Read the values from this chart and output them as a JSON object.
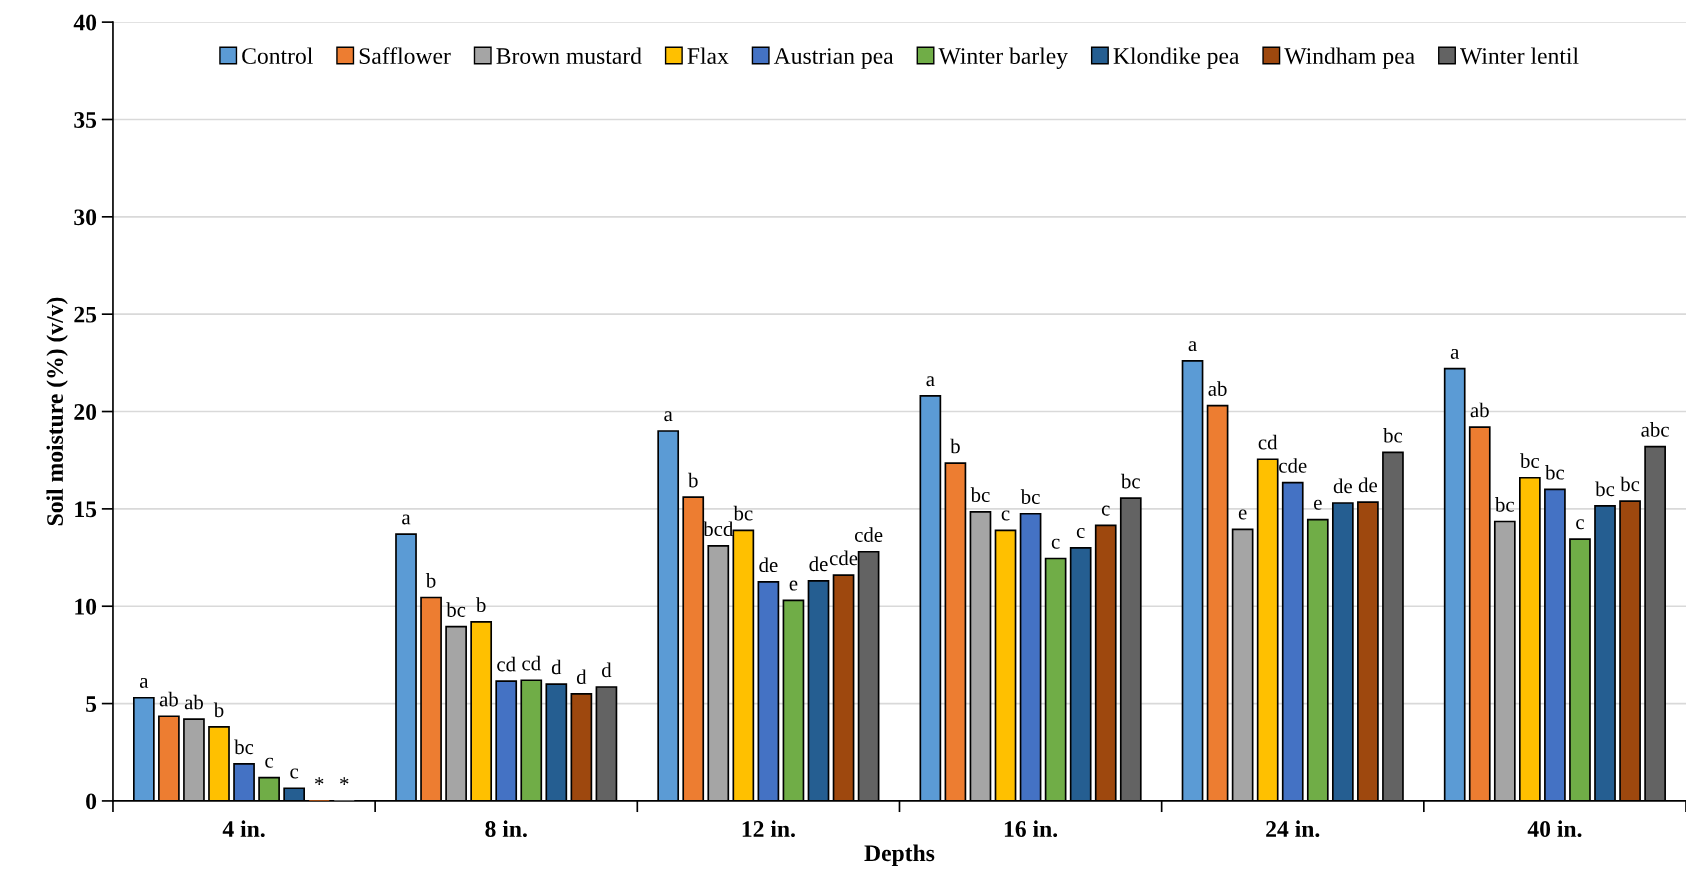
{
  "chart_data": {
    "type": "bar",
    "xlabel": "Depths",
    "ylabel": "Soil moisture (%) (v/v)",
    "categories": [
      "4 in.",
      "8 in.",
      "12 in.",
      "16 in.",
      "24 in.",
      "40 in."
    ],
    "series": [
      {
        "name": "Control",
        "color": "#5b9bd5",
        "values": [
          5.3,
          13.7,
          19.0,
          20.8,
          22.6,
          22.2
        ],
        "value_labels": [
          "a",
          "a",
          "a",
          "a",
          "a",
          "a"
        ]
      },
      {
        "name": "Safflower",
        "color": "#ed7d31",
        "values": [
          4.35,
          10.45,
          15.6,
          17.35,
          20.3,
          19.2
        ],
        "value_labels": [
          "ab",
          "b",
          "b",
          "b",
          "ab",
          "ab"
        ]
      },
      {
        "name": "Brown mustard",
        "color": "#a5a5a5",
        "values": [
          4.2,
          8.95,
          13.1,
          14.85,
          13.95,
          14.35
        ],
        "value_labels": [
          "ab",
          "bc",
          "bcd",
          "bc",
          "e",
          "bc"
        ]
      },
      {
        "name": "Flax",
        "color": "#ffc000",
        "values": [
          3.8,
          9.2,
          13.9,
          13.9,
          17.55,
          16.6
        ],
        "value_labels": [
          "b",
          "b",
          "bc",
          "c",
          "cd",
          "bc"
        ]
      },
      {
        "name": "Austrian pea",
        "color": "#4472c4",
        "values": [
          1.9,
          6.15,
          11.25,
          14.75,
          16.35,
          16.0
        ],
        "value_labels": [
          "bc",
          "cd",
          "de",
          "bc",
          "cde",
          "bc"
        ]
      },
      {
        "name": "Winter barley",
        "color": "#70ad47",
        "values": [
          1.2,
          6.2,
          10.3,
          12.45,
          14.45,
          13.45
        ],
        "value_labels": [
          "c",
          "cd",
          "e",
          "c",
          "e",
          "c"
        ]
      },
      {
        "name": "Klondike pea",
        "color": "#255e91",
        "values": [
          0.65,
          6.0,
          11.3,
          13.0,
          15.3,
          15.15
        ],
        "value_labels": [
          "c",
          "d",
          "de",
          "c",
          "de",
          "bc"
        ]
      },
      {
        "name": "Windham pea",
        "color": "#9e480e",
        "values": [
          0,
          5.5,
          11.6,
          14.15,
          15.35,
          15.4
        ],
        "value_labels": [
          "*",
          "d",
          "cde",
          "c",
          "de",
          "bc"
        ]
      },
      {
        "name": "Winter lentil",
        "color": "#636363",
        "values": [
          0,
          5.85,
          12.8,
          15.55,
          17.9,
          18.2
        ],
        "value_labels": [
          "*",
          "d",
          "cde",
          "bc",
          "bc",
          "abc"
        ]
      }
    ],
    "ylim": [
      0,
      40
    ],
    "yticks": [
      0,
      5,
      10,
      15,
      20,
      25,
      30,
      35,
      40
    ],
    "grid": "y",
    "legend": "top"
  }
}
